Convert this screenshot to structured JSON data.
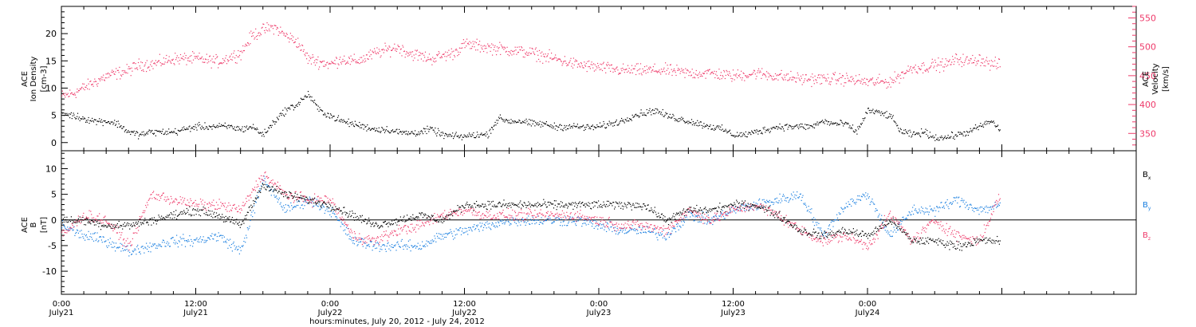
{
  "colors": {
    "density": "#000000",
    "velocity": "#ee3a6a",
    "bx": "#000000",
    "by": "#1a7fe0",
    "bz": "#ee3a6a",
    "axis": "#000000"
  },
  "chart_data": [
    {
      "type": "scatter",
      "panel": "top",
      "ylabel_left": [
        "ACE",
        "Ion Density",
        "[cm-3]"
      ],
      "ylabel_right": [
        "ACE",
        "Velocity",
        "[km/s]"
      ],
      "ylim_left": [
        -1.5,
        25
      ],
      "yticks_left": [
        0,
        5,
        10,
        15,
        20
      ],
      "ylim_right": [
        320,
        570
      ],
      "yticks_right": [
        350,
        400,
        450,
        500,
        550
      ],
      "xlim_hours": [
        0,
        96
      ],
      "data_range_hours": [
        0,
        83.8
      ],
      "series": [
        {
          "key": "density",
          "axis": "left",
          "x": [
            0,
            1,
            2,
            3,
            4,
            5,
            6,
            7,
            8,
            10,
            12,
            14,
            15,
            16,
            17,
            18,
            19,
            20,
            21,
            22,
            23,
            24,
            25,
            26,
            27,
            28,
            29,
            30,
            31,
            32,
            33,
            34,
            35,
            36,
            37,
            38,
            39,
            40,
            41,
            42,
            43,
            44,
            45,
            46,
            47,
            48,
            49,
            50,
            51,
            52,
            53,
            54,
            55,
            56,
            57,
            58,
            59,
            60,
            61,
            62,
            63,
            64,
            65,
            66,
            67,
            68,
            69,
            70,
            71,
            72,
            73,
            74,
            75,
            76,
            77,
            78,
            79,
            80,
            81,
            82,
            83,
            83.8
          ],
          "y": [
            5.5,
            5,
            4.5,
            4,
            4,
            3.5,
            2,
            1.5,
            2,
            2,
            3,
            3,
            3,
            2.5,
            3,
            1.5,
            4,
            6,
            7,
            9,
            6,
            5,
            4,
            3.5,
            3,
            2.5,
            2.5,
            2,
            1.8,
            2,
            2.5,
            1.5,
            1.2,
            1.2,
            1.5,
            1.5,
            4.5,
            4,
            4,
            3.5,
            3.5,
            3,
            3,
            3,
            2.8,
            3,
            3.5,
            4,
            5,
            5.5,
            6,
            5,
            4.5,
            4,
            3.5,
            3,
            2.5,
            1.5,
            1.5,
            2,
            2.5,
            3,
            3,
            3,
            3,
            4,
            3.5,
            3.5,
            2,
            6,
            5.5,
            5,
            2,
            1.5,
            2,
            1,
            1,
            1.5,
            2,
            3,
            4,
            2.5
          ]
        },
        {
          "key": "velocity",
          "axis": "right",
          "x": [
            0,
            1,
            2,
            3,
            4,
            5,
            6,
            7,
            8,
            9,
            10,
            12,
            14,
            16,
            17,
            18,
            19,
            20,
            21,
            22,
            23,
            24,
            25,
            26,
            27,
            28,
            29,
            30,
            31,
            32,
            33,
            34,
            35,
            36,
            38,
            40,
            42,
            44,
            46,
            48,
            50,
            52,
            54,
            56,
            58,
            60,
            62,
            64,
            66,
            68,
            70,
            72,
            74,
            76,
            77,
            78,
            79,
            80,
            81,
            82,
            83,
            83.8
          ],
          "y": [
            415,
            420,
            430,
            440,
            450,
            455,
            460,
            470,
            470,
            475,
            480,
            480,
            475,
            490,
            520,
            530,
            535,
            520,
            510,
            480,
            475,
            470,
            480,
            475,
            480,
            490,
            495,
            500,
            490,
            485,
            480,
            485,
            490,
            505,
            500,
            495,
            490,
            480,
            470,
            465,
            460,
            460,
            460,
            455,
            455,
            450,
            455,
            450,
            445,
            445,
            445,
            440,
            440,
            465,
            465,
            470,
            470,
            480,
            475,
            480,
            470,
            470
          ]
        }
      ]
    },
    {
      "type": "scatter",
      "panel": "bottom",
      "ylabel_left": [
        "ACE",
        "B",
        "[nT]"
      ],
      "ylim": [
        -14.5,
        13.5
      ],
      "yticks": [
        -10,
        -5,
        0,
        5,
        10
      ],
      "xlim_hours": [
        0,
        96
      ],
      "data_range_hours": [
        0,
        83.8
      ],
      "legend": [
        "Bx",
        "By",
        "Bz"
      ],
      "legend_placement": "right",
      "series": [
        {
          "key": "bx",
          "x": [
            0,
            2,
            4,
            6,
            8,
            10,
            12,
            14,
            16,
            18,
            20,
            22,
            24,
            26,
            28,
            30,
            32,
            34,
            36,
            38,
            40,
            42,
            44,
            46,
            48,
            50,
            52,
            54,
            56,
            58,
            60,
            62,
            64,
            66,
            68,
            70,
            72,
            74,
            76,
            78,
            80,
            82,
            83.8
          ],
          "y": [
            0,
            0,
            -1,
            -1,
            0,
            1,
            2,
            1,
            -1,
            7,
            5,
            4,
            3,
            1,
            -1,
            0,
            1,
            0,
            3,
            3,
            3,
            3,
            3,
            3,
            3,
            3,
            3,
            0,
            2,
            2,
            3,
            3,
            1,
            -2,
            -3,
            -2,
            -3,
            0,
            -4,
            -4,
            -5,
            -4,
            -4
          ]
        },
        {
          "key": "by",
          "x": [
            0,
            2,
            4,
            6,
            8,
            10,
            12,
            14,
            16,
            18,
            20,
            22,
            24,
            26,
            28,
            30,
            32,
            34,
            36,
            38,
            40,
            42,
            44,
            46,
            48,
            50,
            52,
            54,
            56,
            58,
            60,
            62,
            64,
            66,
            68,
            70,
            72,
            74,
            76,
            78,
            80,
            82,
            83.8
          ],
          "y": [
            -1,
            -3,
            -4,
            -6,
            -5,
            -4,
            -4,
            -3,
            -6,
            8,
            2,
            4,
            2,
            -4,
            -5,
            -5,
            -5,
            -3,
            -2,
            -1,
            0,
            0,
            0,
            0,
            -1,
            -2,
            -2,
            -3,
            1,
            0,
            2,
            3,
            4,
            5,
            -3,
            3,
            5,
            -3,
            2,
            2,
            4,
            2,
            3
          ]
        },
        {
          "key": "bz",
          "x": [
            0,
            2,
            4,
            6,
            8,
            10,
            12,
            14,
            16,
            18,
            20,
            22,
            24,
            26,
            28,
            30,
            32,
            34,
            36,
            38,
            40,
            42,
            44,
            46,
            48,
            50,
            52,
            54,
            56,
            58,
            60,
            62,
            64,
            66,
            68,
            70,
            72,
            74,
            76,
            78,
            80,
            82,
            83.8
          ],
          "y": [
            -3,
            1,
            0,
            -5,
            5,
            4,
            3,
            3,
            2,
            9,
            5,
            4,
            4,
            -3,
            -4,
            -2,
            -1,
            1,
            2,
            1,
            1,
            1,
            1,
            1,
            0,
            -1,
            -1,
            -2,
            2,
            0,
            2,
            3,
            1,
            -2,
            -4,
            -3,
            -5,
            1,
            -4,
            0,
            -3,
            -4,
            5
          ]
        }
      ]
    }
  ],
  "x_axis": {
    "ticks": [
      {
        "hours": 0,
        "time": "0:00",
        "date": "July21"
      },
      {
        "hours": 12,
        "time": "12:00",
        "date": "July21"
      },
      {
        "hours": 24,
        "time": "0:00",
        "date": "July22"
      },
      {
        "hours": 36,
        "time": "12:00",
        "date": "July22"
      },
      {
        "hours": 48,
        "time": "0:00",
        "date": "July23"
      },
      {
        "hours": 60,
        "time": "12:00",
        "date": "July23"
      },
      {
        "hours": 72,
        "time": "0:00",
        "date": "July24"
      }
    ],
    "title": "hours:minutes, July 20, 2012 - July 24, 2012"
  }
}
